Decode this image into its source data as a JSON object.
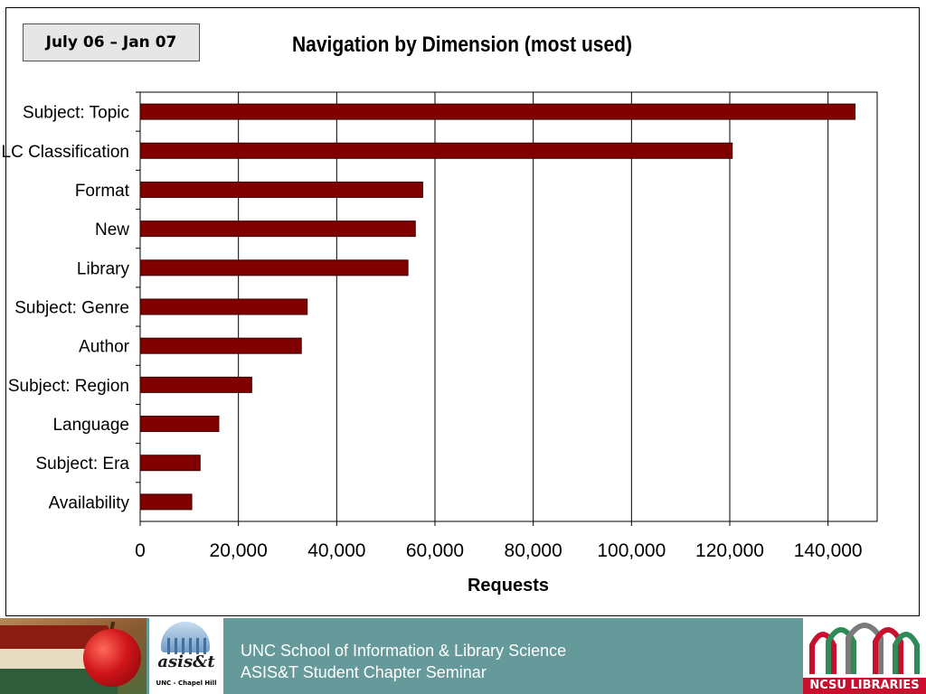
{
  "badge": {
    "date_range": "July 06 – Jan 07"
  },
  "chart_data": {
    "type": "bar",
    "orientation": "horizontal",
    "title": "Navigation by Dimension (most used)",
    "xlabel": "Requests",
    "ylabel": "",
    "categories": [
      "Subject: Topic",
      "LC Classification",
      "Format",
      "New",
      "Library",
      "Subject: Genre",
      "Author",
      "Subject: Region",
      "Language",
      "Subject: Era",
      "Availability"
    ],
    "values": [
      145500,
      120500,
      57500,
      56000,
      54500,
      34000,
      32800,
      22700,
      16000,
      12200,
      10500
    ],
    "xlim": [
      0,
      150000
    ],
    "xticks": [
      0,
      20000,
      40000,
      60000,
      80000,
      100000,
      120000,
      140000
    ],
    "xtick_labels": [
      "0",
      "20,000",
      "40,000",
      "60,000",
      "80,000",
      "100,000",
      "120,000",
      "140,000"
    ],
    "grid": "vertical",
    "bar_color": "#800000",
    "legend": "none"
  },
  "footer": {
    "line1": "UNC School of Information & Library Science",
    "line2": "ASIS&T Student Chapter Seminar",
    "asist_logo_text": "asis&t",
    "asist_logo_sub": "UNC - Chapel Hill",
    "ncsu_logo_text": "NCSU LIBRARIES",
    "band_color": "#66999a"
  }
}
